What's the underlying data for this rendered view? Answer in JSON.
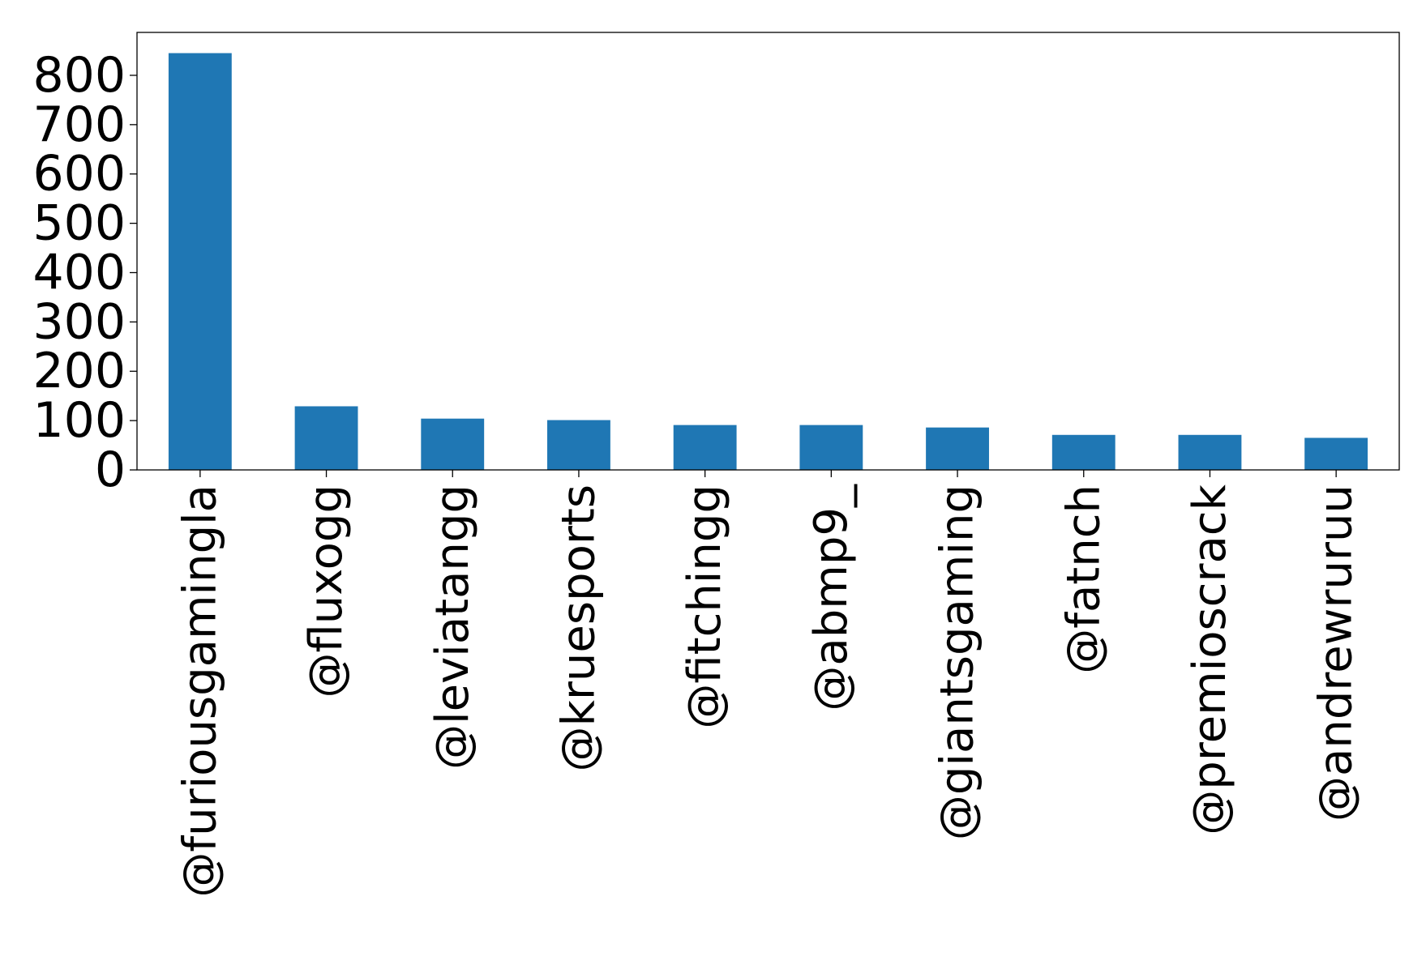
{
  "chart_data": {
    "type": "bar",
    "title": "",
    "xlabel": "",
    "ylabel": "",
    "categories": [
      "@furiousgamingla",
      "@fluxogg",
      "@leviatangg",
      "@kruesports",
      "@fitchingg",
      "@abmp9_",
      "@giantsgaming",
      "@fatnch",
      "@premioscrack",
      "@andrewruruu"
    ],
    "values": [
      845,
      129,
      104,
      101,
      91,
      91,
      86,
      71,
      71,
      65
    ],
    "ylim": [
      0,
      887
    ],
    "yticks": [
      0,
      100,
      200,
      300,
      400,
      500,
      600,
      700,
      800
    ],
    "grid": false,
    "bar_color": "#1f77b4",
    "x_tick_rotation_deg": 90
  }
}
